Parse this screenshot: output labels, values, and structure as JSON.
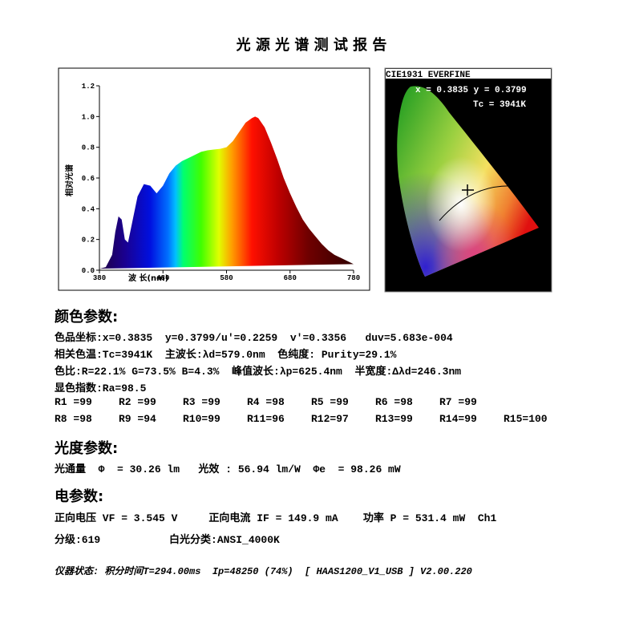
{
  "header": {
    "title": "光 源 光 谱 测 试 报 告"
  },
  "chart_data": {
    "type": "line",
    "x_label": "波 长(nm)",
    "y_label": "相对光谱",
    "x": [
      380,
      390,
      400,
      405,
      410,
      415,
      420,
      425,
      430,
      440,
      450,
      460,
      470,
      480,
      490,
      500,
      510,
      520,
      530,
      540,
      550,
      560,
      570,
      580,
      590,
      600,
      610,
      620,
      625,
      630,
      640,
      650,
      660,
      670,
      680,
      690,
      700,
      710,
      720,
      730,
      740,
      750,
      760,
      770,
      780
    ],
    "values": [
      0.01,
      0.02,
      0.1,
      0.25,
      0.35,
      0.33,
      0.2,
      0.18,
      0.28,
      0.48,
      0.56,
      0.55,
      0.5,
      0.55,
      0.63,
      0.68,
      0.71,
      0.73,
      0.75,
      0.77,
      0.78,
      0.785,
      0.79,
      0.8,
      0.84,
      0.9,
      0.96,
      0.99,
      1.0,
      0.99,
      0.93,
      0.83,
      0.72,
      0.6,
      0.5,
      0.41,
      0.33,
      0.27,
      0.22,
      0.17,
      0.13,
      0.1,
      0.08,
      0.06,
      0.04
    ],
    "xlim": [
      380,
      780
    ],
    "xticks": [
      380,
      480,
      580,
      680,
      780
    ],
    "ylim": [
      0,
      1.2
    ],
    "yticks": [
      {
        "value": 0,
        "label": "0.0"
      },
      0.2,
      0.4,
      0.6,
      0.8,
      {
        "value": 1,
        "label": "1.0"
      },
      1.2
    ]
  },
  "cie": {
    "title": "CIE1931 EVERFINE",
    "coords": "x = 0.3835 y = 0.3799",
    "tc": "Tc = 3941K"
  },
  "color": {
    "heading": "颜色参数:",
    "lines": [
      "色品坐标:x=0.3835  y=0.3799/u'=0.2259  v'=0.3356   duv=5.683e-004",
      "相关色温:Tc=3941K  主波长:λd=579.0nm  色纯度: Purity=29.1%",
      "色比:R=22.1% G=73.5% B=4.3%  峰值波长:λp=625.4nm  半宽度:Δλd=246.3nm",
      "显色指数:Ra=98.5"
    ],
    "r_rows": [
      [
        "R1 =99",
        "R2 =99",
        "R3 =99",
        "R4 =98",
        "R5 =99",
        "R6 =98",
        "R7 =99"
      ],
      [
        "R8 =98",
        "R9 =94",
        "R10=99",
        "R11=96",
        "R12=97",
        "R13=99",
        "R14=99",
        "R15=100"
      ]
    ]
  },
  "photometric": {
    "heading": "光度参数:",
    "line": "光通量  Φ  = 30.26 lm   光效 : 56.94 lm/W  Φe  = 98.26 mW"
  },
  "electrical": {
    "heading": "电参数:",
    "lines": [
      "正向电压 VF = 3.545 V     正向电流 IF = 149.9 mA    功率 P = 531.4 mW  Ch1",
      "分级:619           白光分类:ANSI_4000K"
    ]
  },
  "footer": "仪器状态: 积分时间T=294.00ms  Ip=48250 (74%)  [ HAAS1200_V1_USB ] V2.00.220"
}
